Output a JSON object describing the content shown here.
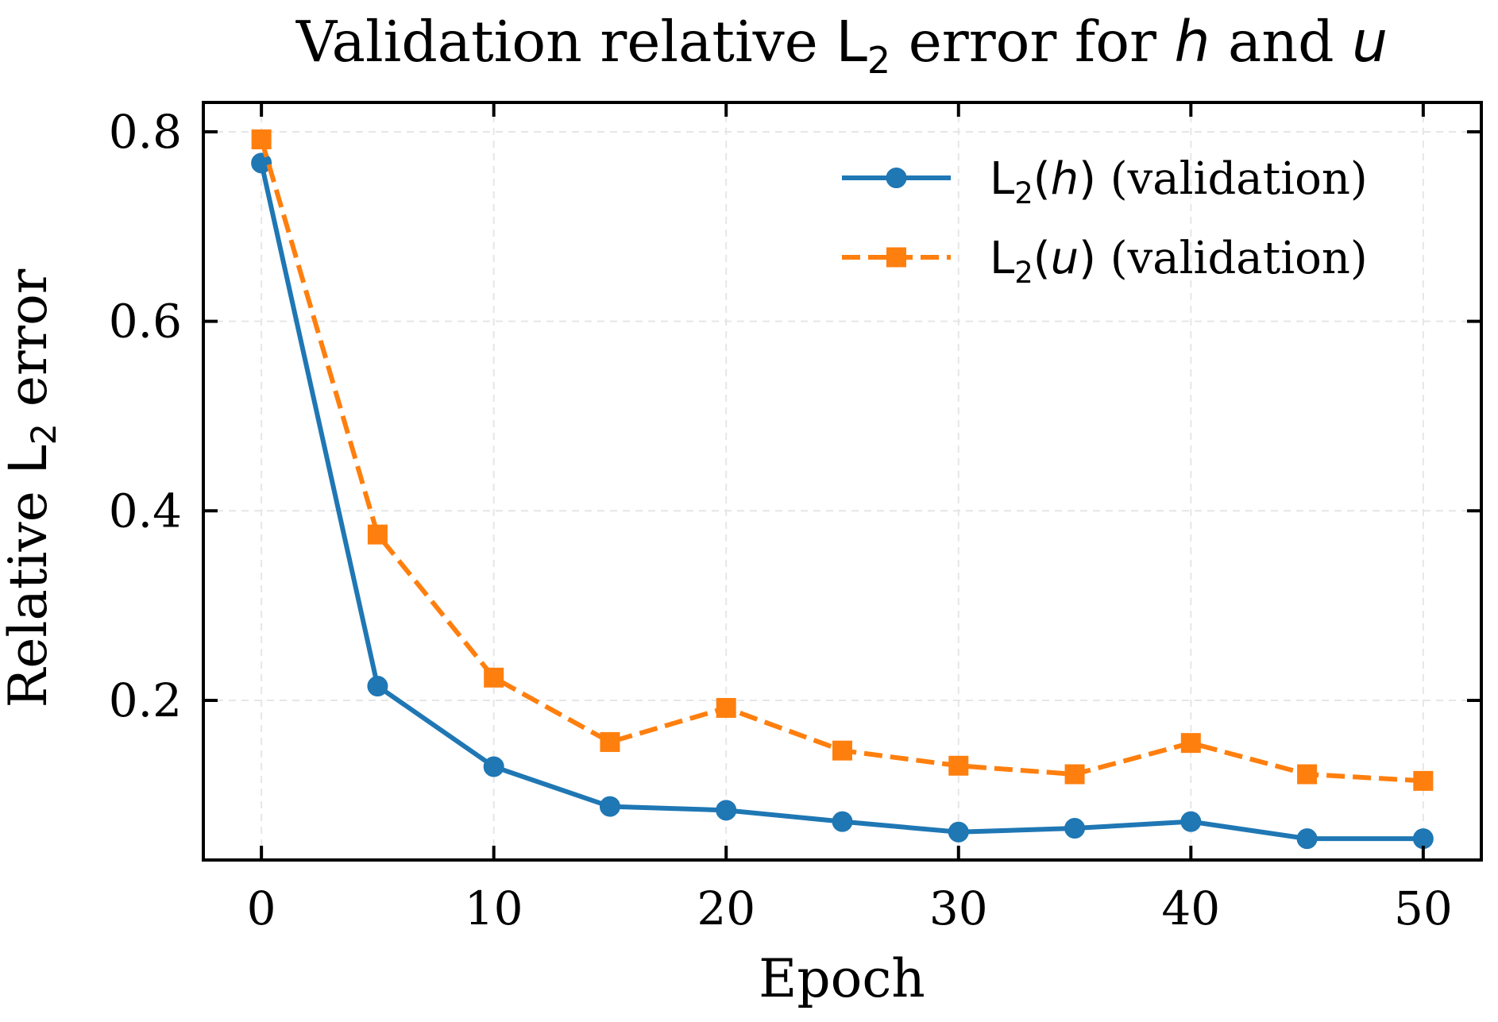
{
  "chart_data": {
    "type": "line",
    "title": {
      "prefix": "Validation relative ",
      "metric": "L",
      "metric_subscript": "2",
      "middle": " error for ",
      "var_h": "h",
      "conjunction": " and ",
      "var_u": "u"
    },
    "xlabel": "Epoch",
    "ylabel": {
      "prefix": "Relative ",
      "metric": "L",
      "metric_subscript": "2",
      "suffix": " error"
    },
    "x": [
      0,
      5,
      10,
      15,
      20,
      25,
      30,
      35,
      40,
      45,
      50
    ],
    "xlim": [
      -2.5,
      52.5
    ],
    "ylim": [
      0.0315,
      0.831
    ],
    "xticks": [
      0,
      10,
      20,
      30,
      40,
      50
    ],
    "xtick_labels": [
      "0",
      "10",
      "20",
      "30",
      "40",
      "50"
    ],
    "yticks": [
      0.2,
      0.4,
      0.6,
      0.8
    ],
    "ytick_labels": [
      "0.2",
      "0.4",
      "0.6",
      "0.8"
    ],
    "grid": true,
    "legend_position": "top-right",
    "series": [
      {
        "name": "L2(h) (validation)",
        "legend": {
          "metric": "L",
          "metric_subscript": "2",
          "open": "(",
          "variable": "h",
          "close": ")",
          "suffix": " (validation)"
        },
        "color": "#1f77b4",
        "line_style": "solid",
        "marker": "circle",
        "values": [
          0.767,
          0.215,
          0.13,
          0.088,
          0.084,
          0.072,
          0.061,
          0.065,
          0.072,
          0.054,
          0.054
        ]
      },
      {
        "name": "L2(u) (validation)",
        "legend": {
          "metric": "L",
          "metric_subscript": "2",
          "open": "(",
          "variable": "u",
          "close": ")",
          "suffix": " (validation)"
        },
        "color": "#ff7f0e",
        "line_style": "dashed",
        "marker": "square",
        "values": [
          0.792,
          0.375,
          0.224,
          0.156,
          0.192,
          0.147,
          0.131,
          0.122,
          0.155,
          0.122,
          0.115
        ]
      }
    ]
  }
}
